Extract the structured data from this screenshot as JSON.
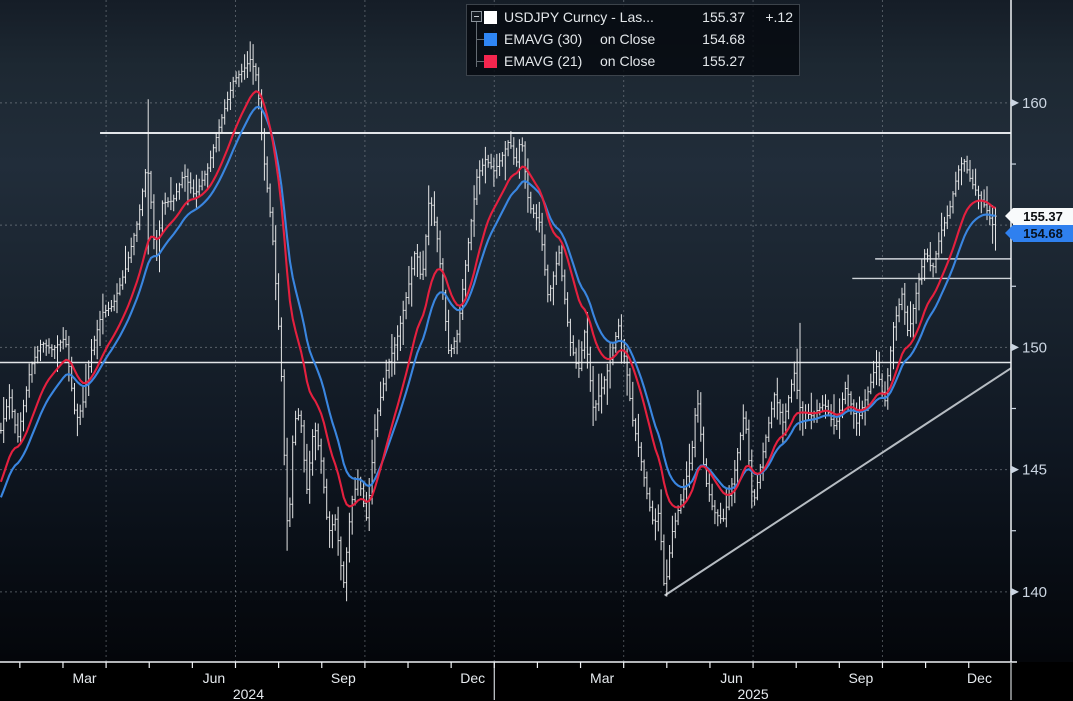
{
  "legend": {
    "rows": [
      {
        "name": "USDJPY Curncy - Las...",
        "on": "",
        "value": "155.37",
        "change": "+.12",
        "swatch": "#ffffff"
      },
      {
        "name": "EMAVG (30)",
        "on": "on Close",
        "value": "154.68",
        "change": "",
        "swatch": "#2f86f5"
      },
      {
        "name": "EMAVG (21)",
        "on": "on Close",
        "value": "155.27",
        "change": "",
        "swatch": "#f5264f"
      }
    ]
  },
  "price_tags": {
    "last": {
      "value": "155.37",
      "price": 155.37
    },
    "ema30": {
      "value": "154.68",
      "price": 154.68
    }
  },
  "chart_data": {
    "type": "candlestick",
    "title": "USDJPY Curncy - Last Price with EMAVG(30) and EMAVG(21) on Close",
    "series": [
      {
        "name": "USDJPY Curncy - Last Price",
        "last": 155.37,
        "change": "+.12",
        "color": "#f4f4f4"
      },
      {
        "name": "EMAVG (30) on Close",
        "last": 154.68,
        "color": "#3a86e0"
      },
      {
        "name": "EMAVG (21) on Close",
        "last": 155.27,
        "color": "#e5203f"
      }
    ],
    "x_unit": "months_since_2024_01",
    "close_keypoints": [
      [
        0.56,
        146.6
      ],
      [
        0.75,
        148.0
      ],
      [
        0.95,
        146.3
      ],
      [
        1.25,
        149.2
      ],
      [
        1.5,
        150.2
      ],
      [
        1.75,
        149.9
      ],
      [
        2.05,
        150.4
      ],
      [
        2.3,
        147.0
      ],
      [
        2.45,
        147.6
      ],
      [
        2.65,
        149.8
      ],
      [
        2.9,
        151.4
      ],
      [
        3.15,
        151.7
      ],
      [
        3.45,
        153.2
      ],
      [
        3.75,
        155.3
      ],
      [
        3.95,
        157.6
      ],
      [
        4.05,
        155.8
      ],
      [
        4.15,
        153.4
      ],
      [
        4.3,
        155.9
      ],
      [
        4.55,
        156.0
      ],
      [
        4.8,
        157.1
      ],
      [
        5.05,
        156.2
      ],
      [
        5.35,
        157.3
      ],
      [
        5.65,
        159.2
      ],
      [
        5.95,
        160.9
      ],
      [
        6.2,
        161.4
      ],
      [
        6.35,
        161.8
      ],
      [
        6.5,
        161.0
      ],
      [
        6.65,
        157.8
      ],
      [
        6.85,
        154.8
      ],
      [
        7.05,
        149.5
      ],
      [
        7.15,
        144.6
      ],
      [
        7.22,
        142.0
      ],
      [
        7.35,
        147.0
      ],
      [
        7.5,
        147.3
      ],
      [
        7.65,
        144.1
      ],
      [
        7.82,
        146.9
      ],
      [
        8.0,
        145.2
      ],
      [
        8.15,
        142.4
      ],
      [
        8.32,
        143.0
      ],
      [
        8.5,
        140.2
      ],
      [
        8.68,
        143.6
      ],
      [
        8.85,
        144.7
      ],
      [
        9.05,
        142.9
      ],
      [
        9.25,
        147.0
      ],
      [
        9.5,
        149.1
      ],
      [
        9.75,
        150.4
      ],
      [
        10.0,
        152.4
      ],
      [
        10.18,
        154.1
      ],
      [
        10.32,
        152.6
      ],
      [
        10.5,
        156.3
      ],
      [
        10.7,
        154.2
      ],
      [
        10.95,
        149.7
      ],
      [
        11.15,
        150.6
      ],
      [
        11.35,
        153.6
      ],
      [
        11.6,
        157.0
      ],
      [
        11.8,
        157.7
      ],
      [
        12.0,
        157.2
      ],
      [
        12.2,
        157.9
      ],
      [
        12.35,
        158.5
      ],
      [
        12.5,
        157.4
      ],
      [
        12.62,
        158.7
      ],
      [
        12.8,
        155.8
      ],
      [
        13.05,
        155.1
      ],
      [
        13.25,
        152.0
      ],
      [
        13.5,
        153.9
      ],
      [
        13.75,
        150.3
      ],
      [
        13.95,
        149.0
      ],
      [
        14.1,
        150.7
      ],
      [
        14.3,
        147.4
      ],
      [
        14.6,
        148.9
      ],
      [
        14.88,
        150.9
      ],
      [
        15.05,
        149.3
      ],
      [
        15.2,
        147.1
      ],
      [
        15.38,
        145.6
      ],
      [
        15.55,
        143.9
      ],
      [
        15.7,
        142.7
      ],
      [
        15.82,
        143.3
      ],
      [
        15.95,
        139.9
      ],
      [
        16.12,
        142.4
      ],
      [
        16.38,
        144.1
      ],
      [
        16.58,
        145.7
      ],
      [
        16.7,
        148.1
      ],
      [
        16.88,
        144.7
      ],
      [
        17.08,
        143.3
      ],
      [
        17.3,
        142.9
      ],
      [
        17.55,
        144.7
      ],
      [
        17.8,
        147.4
      ],
      [
        18.0,
        143.5
      ],
      [
        18.25,
        145.9
      ],
      [
        18.5,
        148.1
      ],
      [
        18.7,
        146.9
      ],
      [
        18.95,
        149.0
      ],
      [
        19.1,
        147.4
      ],
      [
        19.35,
        147.2
      ],
      [
        19.65,
        147.7
      ],
      [
        19.9,
        146.7
      ],
      [
        20.15,
        148.4
      ],
      [
        20.4,
        146.9
      ],
      [
        20.65,
        148.1
      ],
      [
        20.85,
        149.3
      ],
      [
        21.05,
        147.7
      ],
      [
        21.25,
        150.8
      ],
      [
        21.45,
        152.2
      ],
      [
        21.6,
        150.5
      ],
      [
        21.8,
        152.4
      ],
      [
        22.0,
        154.0
      ],
      [
        22.15,
        153.1
      ],
      [
        22.35,
        154.7
      ],
      [
        22.55,
        155.6
      ],
      [
        22.75,
        157.2
      ],
      [
        22.88,
        157.7
      ],
      [
        23.05,
        156.8
      ],
      [
        23.2,
        156.3
      ],
      [
        23.4,
        155.7
      ],
      [
        23.55,
        155.0
      ],
      [
        23.62,
        155.37
      ]
    ],
    "spike_bars": [
      {
        "m": 4.0,
        "high": 160.15,
        "low": 153.8
      },
      {
        "m": 7.22,
        "high": 146.3,
        "low": 141.68
      },
      {
        "m": 19.1,
        "high": 151.0,
        "low": 146.6
      }
    ],
    "bar_count": 352,
    "ema_overlays": [
      {
        "key": "ema30",
        "alpha": 0.089,
        "seed": 143.6,
        "color": "#3a86e0"
      },
      {
        "key": "ema21",
        "alpha": 0.125,
        "seed": 144.2,
        "color": "#e5203f"
      }
    ],
    "levels": [
      {
        "price": 158.77,
        "m_start": 2.86,
        "m_end": 23.98,
        "width": 2.0
      },
      {
        "price": 149.38,
        "m_start": 0.54,
        "m_end": 23.98,
        "width": 1.5
      },
      {
        "price": 153.62,
        "m_start": 20.83,
        "m_end": 23.98,
        "width": 1.4
      },
      {
        "price": 152.82,
        "m_start": 20.3,
        "m_end": 23.98,
        "width": 1.4
      }
    ],
    "trendline": {
      "m_start": 15.95,
      "price_start": 139.85,
      "m_end": 23.98,
      "price_end": 149.15
    },
    "x_axis": {
      "range_months": [
        0.54,
        23.98
      ],
      "month_ticks": [
        1,
        2,
        3,
        4,
        5,
        6,
        7,
        8,
        9,
        10,
        11,
        12,
        13,
        14,
        15,
        16,
        17,
        18,
        19,
        20,
        21,
        22,
        23
      ],
      "quarter_gridlines": [
        3,
        6,
        9,
        12,
        15,
        18,
        21
      ],
      "labels": [
        {
          "text": "Mar",
          "m": 2.5
        },
        {
          "text": "Jun",
          "m": 5.5
        },
        {
          "text": "Sep",
          "m": 8.5
        },
        {
          "text": "Dec",
          "m": 11.5
        },
        {
          "text": "Mar",
          "m": 14.5
        },
        {
          "text": "Jun",
          "m": 17.5
        },
        {
          "text": "Sep",
          "m": 20.5
        },
        {
          "text": "Dec",
          "m": 23.25
        }
      ],
      "years": [
        {
          "text": "2024",
          "m": 6.3
        },
        {
          "text": "2025",
          "m": 18.0
        }
      ],
      "year_separators": [
        12,
        23.98
      ]
    },
    "y_axis": {
      "top_price": 164.21,
      "bottom_price": 137.13,
      "major_ticks": [
        {
          "price": 160,
          "label": "160"
        },
        {
          "price": 150,
          "label": "150"
        },
        {
          "price": 145,
          "label": "145"
        },
        {
          "price": 140,
          "label": "140"
        }
      ],
      "minor_ticks": [
        157.5,
        152.5,
        147.5,
        142.5
      ],
      "gridline_prices": [
        160,
        155,
        150,
        145,
        140
      ]
    },
    "colors": {
      "bar": "#f4f4f4",
      "grid": "#99a0a8",
      "level": "#edf0f3",
      "short_level": "#d8dde2",
      "trend": "#b6bcc2",
      "frame": "#eef1f4",
      "axis_text": "#ccd6e2",
      "month_text": "#e6eaee"
    }
  }
}
